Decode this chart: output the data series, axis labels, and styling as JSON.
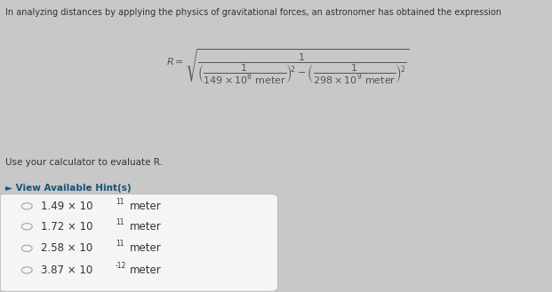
{
  "bg_color": "#c8c8c8",
  "upper_bg": "#c8c8c8",
  "title_text": "In analyzing distances by applying the physics of gravitational forces, an astronomer has obtained the expression",
  "instruction": "Use your calculator to evaluate R.",
  "hint_text": "► View Available Hint(s)",
  "hint_color": "#1a5276",
  "choices": [
    "1.49 × 10",
    "1.72 × 10",
    "2.58 × 10",
    "3.87 × 10"
  ],
  "choice_exponents": [
    "11",
    "11",
    "11",
    "-12"
  ],
  "choice_units": [
    " meter",
    " meter",
    " meter",
    " meter"
  ],
  "box_facecolor": "#f5f5f5",
  "box_edgecolor": "#bbbbbb",
  "text_color": "#333333",
  "radio_color": "#999999",
  "formula_color": "#555555",
  "title_fontsize": 7.0,
  "choice_fontsize": 8.5,
  "instruction_fontsize": 7.5,
  "hint_fontsize": 7.5
}
